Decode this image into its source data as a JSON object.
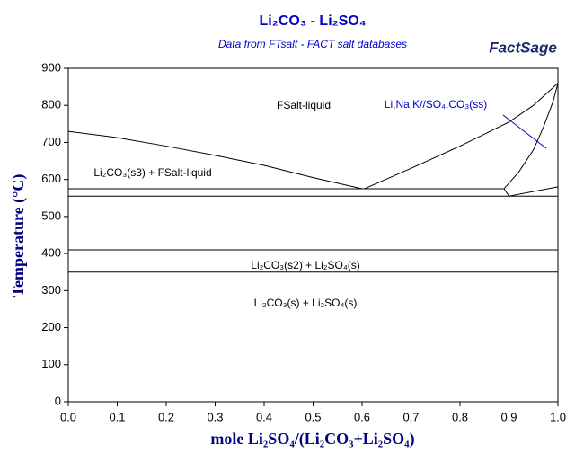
{
  "chart_data": {
    "type": "line",
    "title": "Li₂CO₃ - Li₂SO₄",
    "subtitle": "Data from FTsalt - FACT salt databases",
    "logo": "FactSage",
    "x_label": "mole Li₂SO₄/(Li₂CO₃+Li₂SO₄)",
    "y_label": "Temperature (°C)",
    "xlim": [
      0,
      1
    ],
    "ylim": [
      0,
      900
    ],
    "xticks": [
      {
        "value": 0,
        "label": "0.0"
      },
      {
        "value": 0.1,
        "label": "0.1"
      },
      {
        "value": 0.2,
        "label": "0.2"
      },
      {
        "value": 0.3,
        "label": "0.3"
      },
      {
        "value": 0.4,
        "label": "0.4"
      },
      {
        "value": 0.5,
        "label": "0.5"
      },
      {
        "value": 0.6,
        "label": "0.6"
      },
      {
        "value": 0.7,
        "label": "0.7"
      },
      {
        "value": 0.8,
        "label": "0.8"
      },
      {
        "value": 0.9,
        "label": "0.9"
      },
      {
        "value": 1,
        "label": "1.0"
      }
    ],
    "yticks": [
      0,
      100,
      200,
      300,
      400,
      500,
      600,
      700,
      800,
      900
    ],
    "series": [
      {
        "color": "#000000",
        "x": [
          0,
          0.1,
          0.2,
          0.3,
          0.4,
          0.5,
          0.6
        ],
        "values": [
          730,
          713,
          690,
          665,
          638,
          605,
          575
        ]
      },
      {
        "color": "#000000",
        "x": [
          0.605,
          0.7,
          0.8,
          0.9,
          0.95,
          1
        ],
        "values": [
          575,
          630,
          690,
          755,
          800,
          860
        ]
      },
      {
        "color": "#000000",
        "x": [
          0,
          0.89
        ],
        "values": [
          575,
          575
        ]
      },
      {
        "color": "#000000",
        "x": [
          0,
          1
        ],
        "values": [
          555,
          555
        ]
      },
      {
        "color": "#000000",
        "x": [
          0,
          1
        ],
        "values": [
          410,
          410
        ]
      },
      {
        "color": "#000000",
        "x": [
          0,
          1
        ],
        "values": [
          350,
          350
        ]
      },
      {
        "color": "#000000",
        "x": [
          0.89,
          0.9,
          1
        ],
        "values": [
          575,
          555,
          580
        ]
      },
      {
        "color": "#000000",
        "x": [
          0.89,
          0.92,
          0.95,
          0.97,
          0.99,
          1
        ],
        "values": [
          575,
          620,
          680,
          740,
          810,
          860
        ]
      }
    ],
    "annotations": [
      "FSalt-liquid",
      "Li₂CO₃(s3) + FSalt-liquid",
      "Li,Na,K//SO₄,CO₃(ss)",
      "Li₂CO₃(s2) + Li₂SO₄(s)",
      "Li₂CO₃(s) + Li₂SO₄(s)"
    ]
  }
}
